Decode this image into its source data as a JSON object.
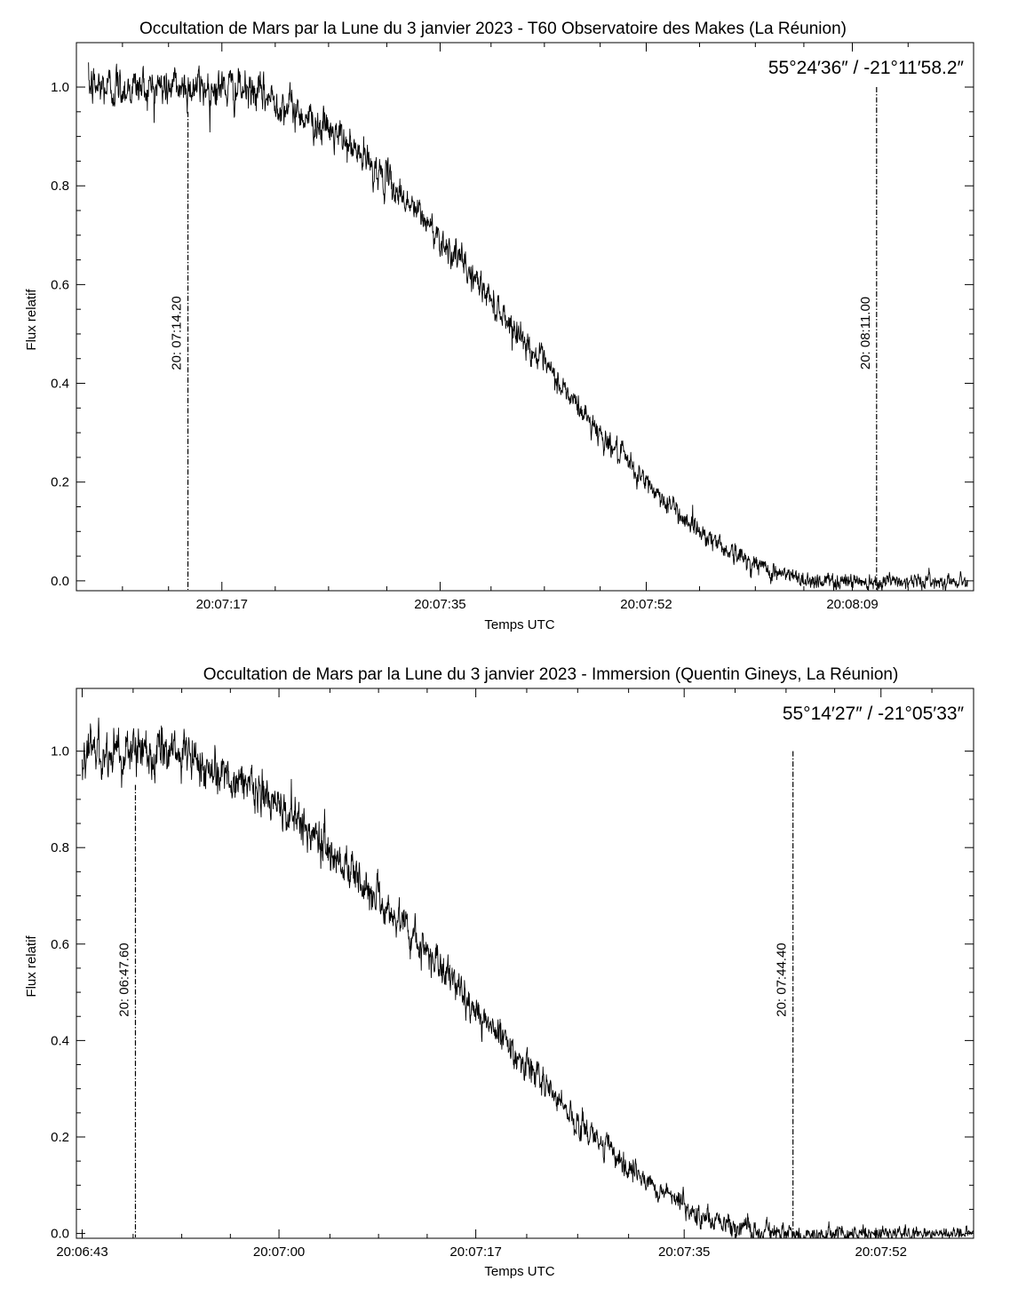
{
  "chart_data": [
    {
      "type": "line",
      "title": "Occultation de Mars par la Lune du 3 janvier 2023 - T60 Observatoire des Makes (La Réunion)",
      "coords": "55°24′36″ / -21°11′58.2″",
      "xlabel": "Temps UTC",
      "ylabel": "Flux relatif",
      "xlim_seconds": [
        5,
        79
      ],
      "ylim": [
        -0.02,
        1.09
      ],
      "x_ticks": [
        {
          "s": 17,
          "label": "20:07:17"
        },
        {
          "s": 35,
          "label": "20:07:35"
        },
        {
          "s": 52,
          "label": "20:07:52"
        },
        {
          "s": 69,
          "label": "20:08:09"
        }
      ],
      "x_minor_seconds": [
        8.8,
        12.6,
        21.4,
        25.8,
        30.6,
        39.2,
        43.6,
        48.2,
        56.4,
        61.0,
        65.0,
        73.6
      ],
      "y_ticks": [
        {
          "v": 0.0,
          "label": "0.0"
        },
        {
          "v": 0.2,
          "label": "0.2"
        },
        {
          "v": 0.4,
          "label": "0.4"
        },
        {
          "v": 0.6,
          "label": "0.6"
        },
        {
          "v": 0.8,
          "label": "0.8"
        },
        {
          "v": 1.0,
          "label": "1.0"
        }
      ],
      "events": [
        {
          "s": 14.2,
          "label": "20: 07:14.20",
          "y_top": 0.95
        },
        {
          "s": 71.0,
          "label": "20: 08:11.00",
          "y_top": 1.0
        }
      ],
      "curve": {
        "t0": 16,
        "t1": 67,
        "level": 1.0,
        "noise_start": 0.04,
        "noise_end": 0.012,
        "x_start": 6.0,
        "x_end": 78.5
      },
      "series": [
        {
          "x_seconds": [
            6,
            10,
            14,
            17,
            21,
            25,
            29,
            33,
            37,
            41,
            45,
            49,
            53,
            57,
            61,
            65,
            69,
            73,
            78
          ],
          "values": [
            1.0,
            0.99,
            0.97,
            0.97,
            0.94,
            0.87,
            0.78,
            0.68,
            0.59,
            0.5,
            0.4,
            0.3,
            0.21,
            0.13,
            0.07,
            0.02,
            0.0,
            0.0,
            0.0
          ]
        }
      ]
    },
    {
      "type": "line",
      "title": "Occultation de Mars par la Lune du 3 janvier 2023 - Immersion (Quentin Gineys, La Réunion)",
      "coords": "55°14′27″ / -21°05′33″",
      "xlabel": "Temps UTC",
      "ylabel": "Flux relatif",
      "xlim_seconds": [
        42.5,
        120
      ],
      "ylim": [
        -0.01,
        1.13
      ],
      "x_ticks": [
        {
          "s": 43,
          "label": "20:06:43"
        },
        {
          "s": 60,
          "label": "20:07:00"
        },
        {
          "s": 77,
          "label": "20:07:17"
        },
        {
          "s": 95,
          "label": "20:07:35"
        },
        {
          "s": 112,
          "label": "20:07:52"
        }
      ],
      "x_minor_seconds": [
        47.4,
        51.6,
        55.8,
        64.4,
        68.6,
        72.8,
        81.4,
        85.8,
        90.2,
        99.4,
        103.8,
        108.0,
        116.4
      ],
      "y_ticks": [
        {
          "v": 0.0,
          "label": "0.0"
        },
        {
          "v": 0.2,
          "label": "0.2"
        },
        {
          "v": 0.4,
          "label": "0.4"
        },
        {
          "v": 0.6,
          "label": "0.6"
        },
        {
          "v": 0.8,
          "label": "0.8"
        },
        {
          "v": 1.0,
          "label": "1.0"
        }
      ],
      "events": [
        {
          "s": 47.6,
          "label": "20: 06:47.60",
          "y_top": 0.93
        },
        {
          "s": 104.4,
          "label": "20: 07:44.40",
          "y_top": 1.0
        }
      ],
      "curve": {
        "t0": 47.5,
        "t1": 104,
        "level": 1.0,
        "noise_start": 0.05,
        "noise_end": 0.01,
        "x_start": 43.0,
        "x_end": 120.0
      },
      "series": [
        {
          "x_seconds": [
            43,
            46,
            49,
            52,
            55,
            58,
            61,
            64,
            67,
            70,
            73,
            76,
            79,
            82,
            85,
            88,
            91,
            94,
            97,
            100,
            103,
            106,
            110,
            115,
            120
          ],
          "values": [
            0.97,
            1.0,
            1.03,
            1.02,
            0.98,
            0.93,
            0.86,
            0.78,
            0.7,
            0.64,
            0.57,
            0.5,
            0.43,
            0.35,
            0.29,
            0.22,
            0.16,
            0.1,
            0.04,
            0.02,
            0.01,
            0.0,
            0.0,
            0.0,
            0.0
          ]
        }
      ]
    }
  ]
}
